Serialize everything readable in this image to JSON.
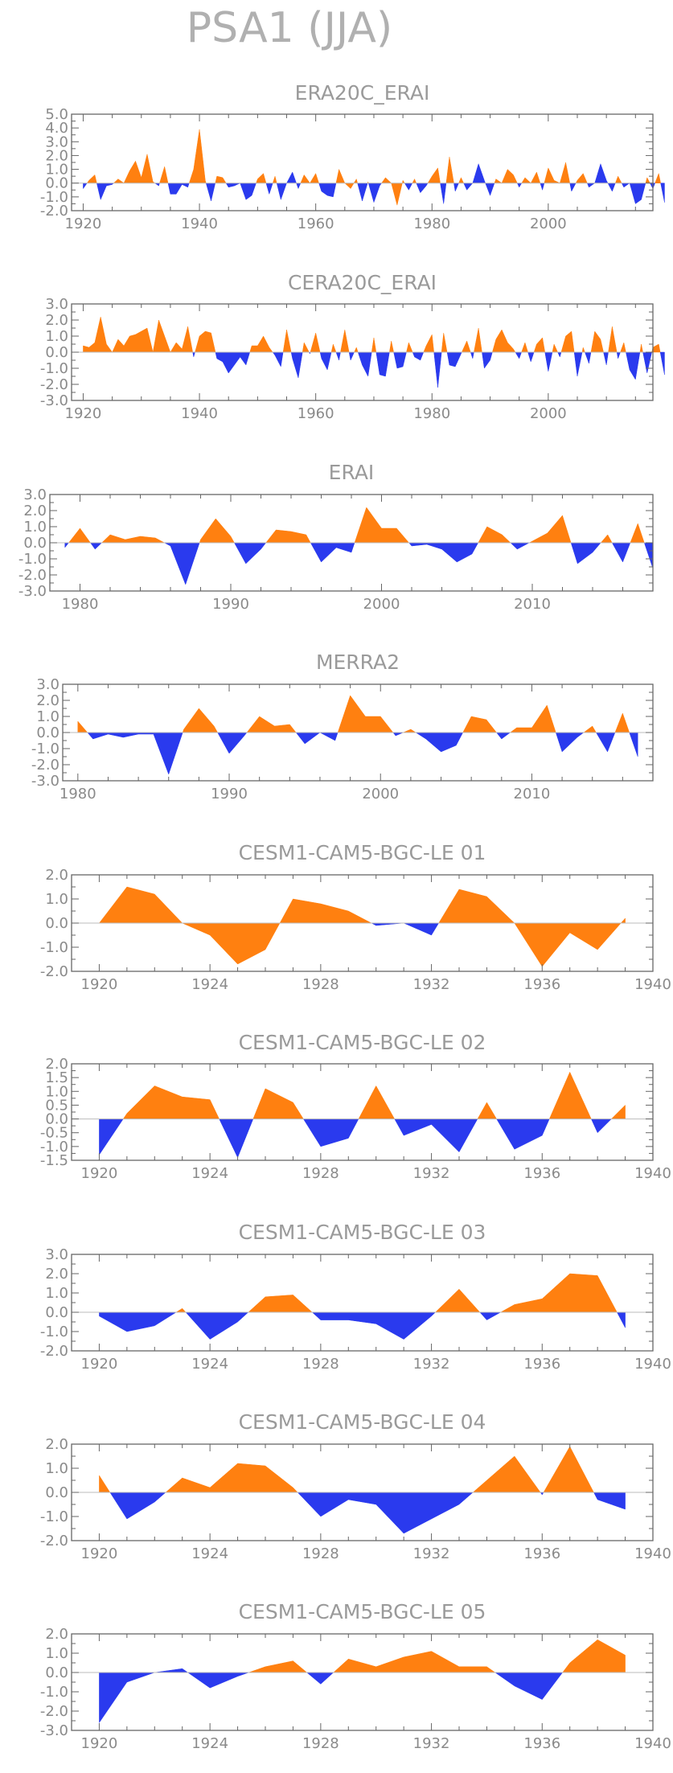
{
  "figure": {
    "title": "PSA1 (JJA)"
  },
  "colors": {
    "positive": "#FF8010",
    "negative": "#2A3AEE"
  },
  "chart_data": [
    {
      "type": "area",
      "title": "ERA20C_ERAI",
      "xlim": [
        1918,
        2018
      ],
      "ylim": [
        -2.0,
        5.0
      ],
      "x_ticks": [
        1920,
        1940,
        1960,
        1980,
        2000
      ],
      "x_minor_step": 5,
      "y_ticks": [
        -2.0,
        -1.0,
        0.0,
        1.0,
        2.0,
        3.0,
        4.0,
        5.0
      ],
      "y_tick_labels": [
        "-2.0",
        "-1.0",
        "0.0",
        "1.0",
        "2.0",
        "3.0",
        "4.0",
        "5.0"
      ],
      "x_start": 1920,
      "values": [
        -0.4,
        0.2,
        0.6,
        -1.2,
        -0.2,
        -0.1,
        0.3,
        0.0,
        0.9,
        1.6,
        0.4,
        2.1,
        0.1,
        -0.2,
        1.2,
        -0.8,
        -0.8,
        -0.1,
        -0.3,
        1.0,
        3.9,
        0.2,
        -1.3,
        0.5,
        0.4,
        -0.3,
        -0.2,
        0.0,
        -1.2,
        -0.9,
        0.3,
        0.7,
        -0.8,
        0.5,
        -1.2,
        0.0,
        0.8,
        -0.4,
        0.6,
        0.0,
        0.7,
        -0.6,
        -0.9,
        -1.0,
        1.0,
        0.0,
        -0.4,
        0.3,
        -1.3,
        0.1,
        -1.4,
        -0.2,
        0.4,
        0.0,
        -1.6,
        0.2,
        -0.5,
        0.3,
        -0.7,
        -0.2,
        0.5,
        1.1,
        -1.5,
        1.9,
        -0.6,
        0.4,
        -0.5,
        0.0,
        1.4,
        0.2,
        -0.9,
        0.3,
        0.0,
        1.0,
        0.6,
        -0.3,
        0.4,
        0.0,
        0.8,
        -0.5,
        1.1,
        0.2,
        0.0,
        1.5,
        -0.6,
        0.2,
        0.7,
        -0.3,
        0.0,
        1.4,
        0.2,
        -0.6,
        0.5,
        -0.3,
        0.0,
        -1.5,
        -1.2,
        0.4,
        -0.4,
        0.7,
        -1.4
      ]
    },
    {
      "type": "area",
      "title": "CERA20C_ERAI",
      "xlim": [
        1918,
        2018
      ],
      "ylim": [
        -3.0,
        3.0
      ],
      "x_ticks": [
        1920,
        1940,
        1960,
        1980,
        2000
      ],
      "x_minor_step": 5,
      "y_ticks": [
        -3.0,
        -2.0,
        -1.0,
        0.0,
        1.0,
        2.0,
        3.0
      ],
      "y_tick_labels": [
        "-3.0",
        "-2.0",
        "-1.0",
        "0.0",
        "1.0",
        "2.0",
        "3.0"
      ],
      "x_start": 1920,
      "values": [
        0.4,
        0.3,
        0.6,
        2.2,
        0.5,
        0.0,
        0.8,
        0.4,
        1.0,
        1.1,
        1.3,
        1.5,
        0.0,
        2.0,
        1.0,
        0.0,
        0.6,
        0.2,
        1.6,
        -0.3,
        1.0,
        1.3,
        1.2,
        -0.4,
        -0.6,
        -1.3,
        -0.8,
        -0.3,
        -0.8,
        0.4,
        0.4,
        1.0,
        0.3,
        -0.2,
        -0.9,
        1.4,
        -0.4,
        -1.6,
        0.6,
        -0.1,
        1.2,
        -0.4,
        -1.1,
        0.5,
        -0.5,
        1.4,
        -0.5,
        0.3,
        -0.8,
        -1.5,
        0.9,
        -1.4,
        -1.5,
        0.7,
        -1.0,
        -0.9,
        0.6,
        -0.3,
        -0.5,
        0.4,
        1.1,
        -2.2,
        1.2,
        -0.8,
        -0.9,
        -0.1,
        0.7,
        -0.4,
        1.5,
        -1.0,
        -0.5,
        0.8,
        1.4,
        0.6,
        0.2,
        -0.4,
        0.6,
        -0.6,
        0.5,
        0.9,
        -1.2,
        0.5,
        -0.3,
        1.0,
        1.3,
        -1.5,
        0.3,
        -0.7,
        1.3,
        0.8,
        -0.8,
        1.6,
        -0.4,
        0.6,
        -1.1,
        -1.7,
        0.5,
        -1.3,
        0.3,
        0.5,
        -1.4
      ]
    },
    {
      "type": "area",
      "title": "ERAI",
      "xlim": [
        1978,
        2018
      ],
      "ylim": [
        -3.0,
        3.0
      ],
      "x_ticks": [
        1980,
        1990,
        2000,
        2010
      ],
      "x_minor_step": 2,
      "y_ticks": [
        -3.0,
        -2.0,
        -1.0,
        0.0,
        1.0,
        2.0,
        3.0
      ],
      "y_tick_labels": [
        "-3.0",
        "-2.0",
        "-1.0",
        "0.0",
        "1.0",
        "2.0",
        "3.0"
      ],
      "x_start": 1979,
      "values": [
        -0.3,
        0.9,
        -0.4,
        0.5,
        0.2,
        0.4,
        0.3,
        -0.2,
        -2.6,
        0.2,
        1.5,
        0.4,
        -1.3,
        -0.4,
        0.8,
        0.7,
        0.5,
        -1.2,
        -0.3,
        -0.6,
        2.2,
        0.9,
        0.9,
        -0.2,
        -0.1,
        -0.4,
        -1.2,
        -0.7,
        1.0,
        0.5,
        -0.4,
        0.1,
        0.6,
        1.7,
        -1.3,
        -0.6,
        0.5,
        -1.2,
        1.2,
        -1.6
      ]
    },
    {
      "type": "area",
      "title": "MERRA2",
      "xlim": [
        1979,
        2018
      ],
      "ylim": [
        -3.0,
        3.0
      ],
      "x_ticks": [
        1980,
        1990,
        2000,
        2010
      ],
      "x_minor_step": 2,
      "y_ticks": [
        -3.0,
        -2.0,
        -1.0,
        0.0,
        1.0,
        2.0,
        3.0
      ],
      "y_tick_labels": [
        "-3.0",
        "-2.0",
        "-1.0",
        "0.0",
        "1.0",
        "2.0",
        "3.0"
      ],
      "x_start": 1980,
      "values": [
        0.7,
        -0.4,
        -0.1,
        -0.3,
        -0.1,
        -0.1,
        -2.6,
        0.2,
        1.5,
        0.4,
        -1.3,
        -0.2,
        1.0,
        0.4,
        0.5,
        -0.7,
        0.0,
        -0.5,
        2.3,
        1.0,
        1.0,
        -0.2,
        0.2,
        -0.4,
        -1.2,
        -0.8,
        1.0,
        0.8,
        -0.4,
        0.3,
        0.3,
        1.7,
        -1.2,
        -0.3,
        0.4,
        -1.2,
        1.2,
        -1.5
      ]
    },
    {
      "type": "area",
      "title": "CESM1-CAM5-BGC-LE 01",
      "xlim": [
        1919,
        1940
      ],
      "ylim": [
        -2.0,
        2.0
      ],
      "x_ticks": [
        1920,
        1924,
        1928,
        1932,
        1936,
        1940
      ],
      "x_minor_step": 1,
      "y_ticks": [
        -2.0,
        -1.0,
        0.0,
        1.0,
        2.0
      ],
      "y_tick_labels": [
        "-2.0",
        "-1.0",
        "0.0",
        "1.0",
        "2.0"
      ],
      "x_start": 1920,
      "values": [
        0.0,
        1.5,
        1.2,
        0.0,
        -0.5,
        -1.7,
        -1.1,
        1.0,
        0.8,
        0.5,
        -0.1,
        -0.0,
        -0.5,
        1.4,
        1.1,
        0.0,
        -1.8,
        -0.4,
        -1.1,
        0.2
      ]
    },
    {
      "type": "area",
      "title": "CESM1-CAM5-BGC-LE 02",
      "xlim": [
        1919,
        1940
      ],
      "ylim": [
        -1.5,
        2.0
      ],
      "x_ticks": [
        1920,
        1924,
        1928,
        1932,
        1936,
        1940
      ],
      "x_minor_step": 1,
      "y_ticks": [
        -1.5,
        -1.0,
        -0.5,
        0.0,
        0.5,
        1.0,
        1.5,
        2.0
      ],
      "y_tick_labels": [
        "-1.5",
        "-1.0",
        "-0.5",
        "0.0",
        "0.5",
        "1.0",
        "1.5",
        "2.0"
      ],
      "x_start": 1920,
      "values": [
        -1.3,
        0.2,
        1.2,
        0.8,
        0.7,
        -1.4,
        1.1,
        0.6,
        -1.0,
        -0.7,
        1.2,
        -0.6,
        -0.2,
        -1.2,
        0.6,
        -1.1,
        -0.6,
        1.7,
        -0.5,
        0.5
      ]
    },
    {
      "type": "area",
      "title": "CESM1-CAM5-BGC-LE 03",
      "xlim": [
        1919,
        1940
      ],
      "ylim": [
        -2.0,
        3.0
      ],
      "x_ticks": [
        1920,
        1924,
        1928,
        1932,
        1936,
        1940
      ],
      "x_minor_step": 1,
      "y_ticks": [
        -2.0,
        -1.0,
        0.0,
        1.0,
        2.0,
        3.0
      ],
      "y_tick_labels": [
        "-2.0",
        "-1.0",
        "0.0",
        "1.0",
        "2.0",
        "3.0"
      ],
      "x_start": 1920,
      "values": [
        -0.2,
        -1.0,
        -0.7,
        0.2,
        -1.4,
        -0.5,
        0.8,
        0.9,
        -0.4,
        -0.4,
        -0.6,
        -1.4,
        -0.2,
        1.2,
        -0.4,
        0.4,
        0.7,
        2.0,
        1.9,
        -0.8
      ]
    },
    {
      "type": "area",
      "title": "CESM1-CAM5-BGC-LE 04",
      "xlim": [
        1919,
        1940
      ],
      "ylim": [
        -2.0,
        2.0
      ],
      "x_ticks": [
        1920,
        1924,
        1928,
        1932,
        1936,
        1940
      ],
      "x_minor_step": 1,
      "y_ticks": [
        -2.0,
        -1.0,
        0.0,
        1.0,
        2.0
      ],
      "y_tick_labels": [
        "-2.0",
        "-1.0",
        "0.0",
        "1.0",
        "2.0"
      ],
      "x_start": 1920,
      "values": [
        0.7,
        -1.1,
        -0.4,
        0.6,
        0.2,
        1.2,
        1.1,
        0.2,
        -1.0,
        -0.3,
        -0.5,
        -1.7,
        -1.1,
        -0.5,
        0.5,
        1.5,
        -0.1,
        1.9,
        -0.3,
        -0.7
      ]
    },
    {
      "type": "area",
      "title": "CESM1-CAM5-BGC-LE 05",
      "xlim": [
        1919,
        1940
      ],
      "ylim": [
        -3.0,
        2.0
      ],
      "x_ticks": [
        1920,
        1924,
        1928,
        1932,
        1936,
        1940
      ],
      "x_minor_step": 1,
      "y_ticks": [
        -3.0,
        -2.0,
        -1.0,
        0.0,
        1.0,
        2.0
      ],
      "y_tick_labels": [
        "-3.0",
        "-2.0",
        "-1.0",
        "0.0",
        "1.0",
        "2.0"
      ],
      "x_start": 1920,
      "values": [
        -2.6,
        -0.5,
        0.0,
        0.2,
        -0.8,
        -0.2,
        0.3,
        0.6,
        -0.6,
        0.7,
        0.3,
        0.8,
        1.1,
        0.3,
        0.3,
        -0.7,
        -1.4,
        0.5,
        1.7,
        0.9
      ]
    }
  ]
}
